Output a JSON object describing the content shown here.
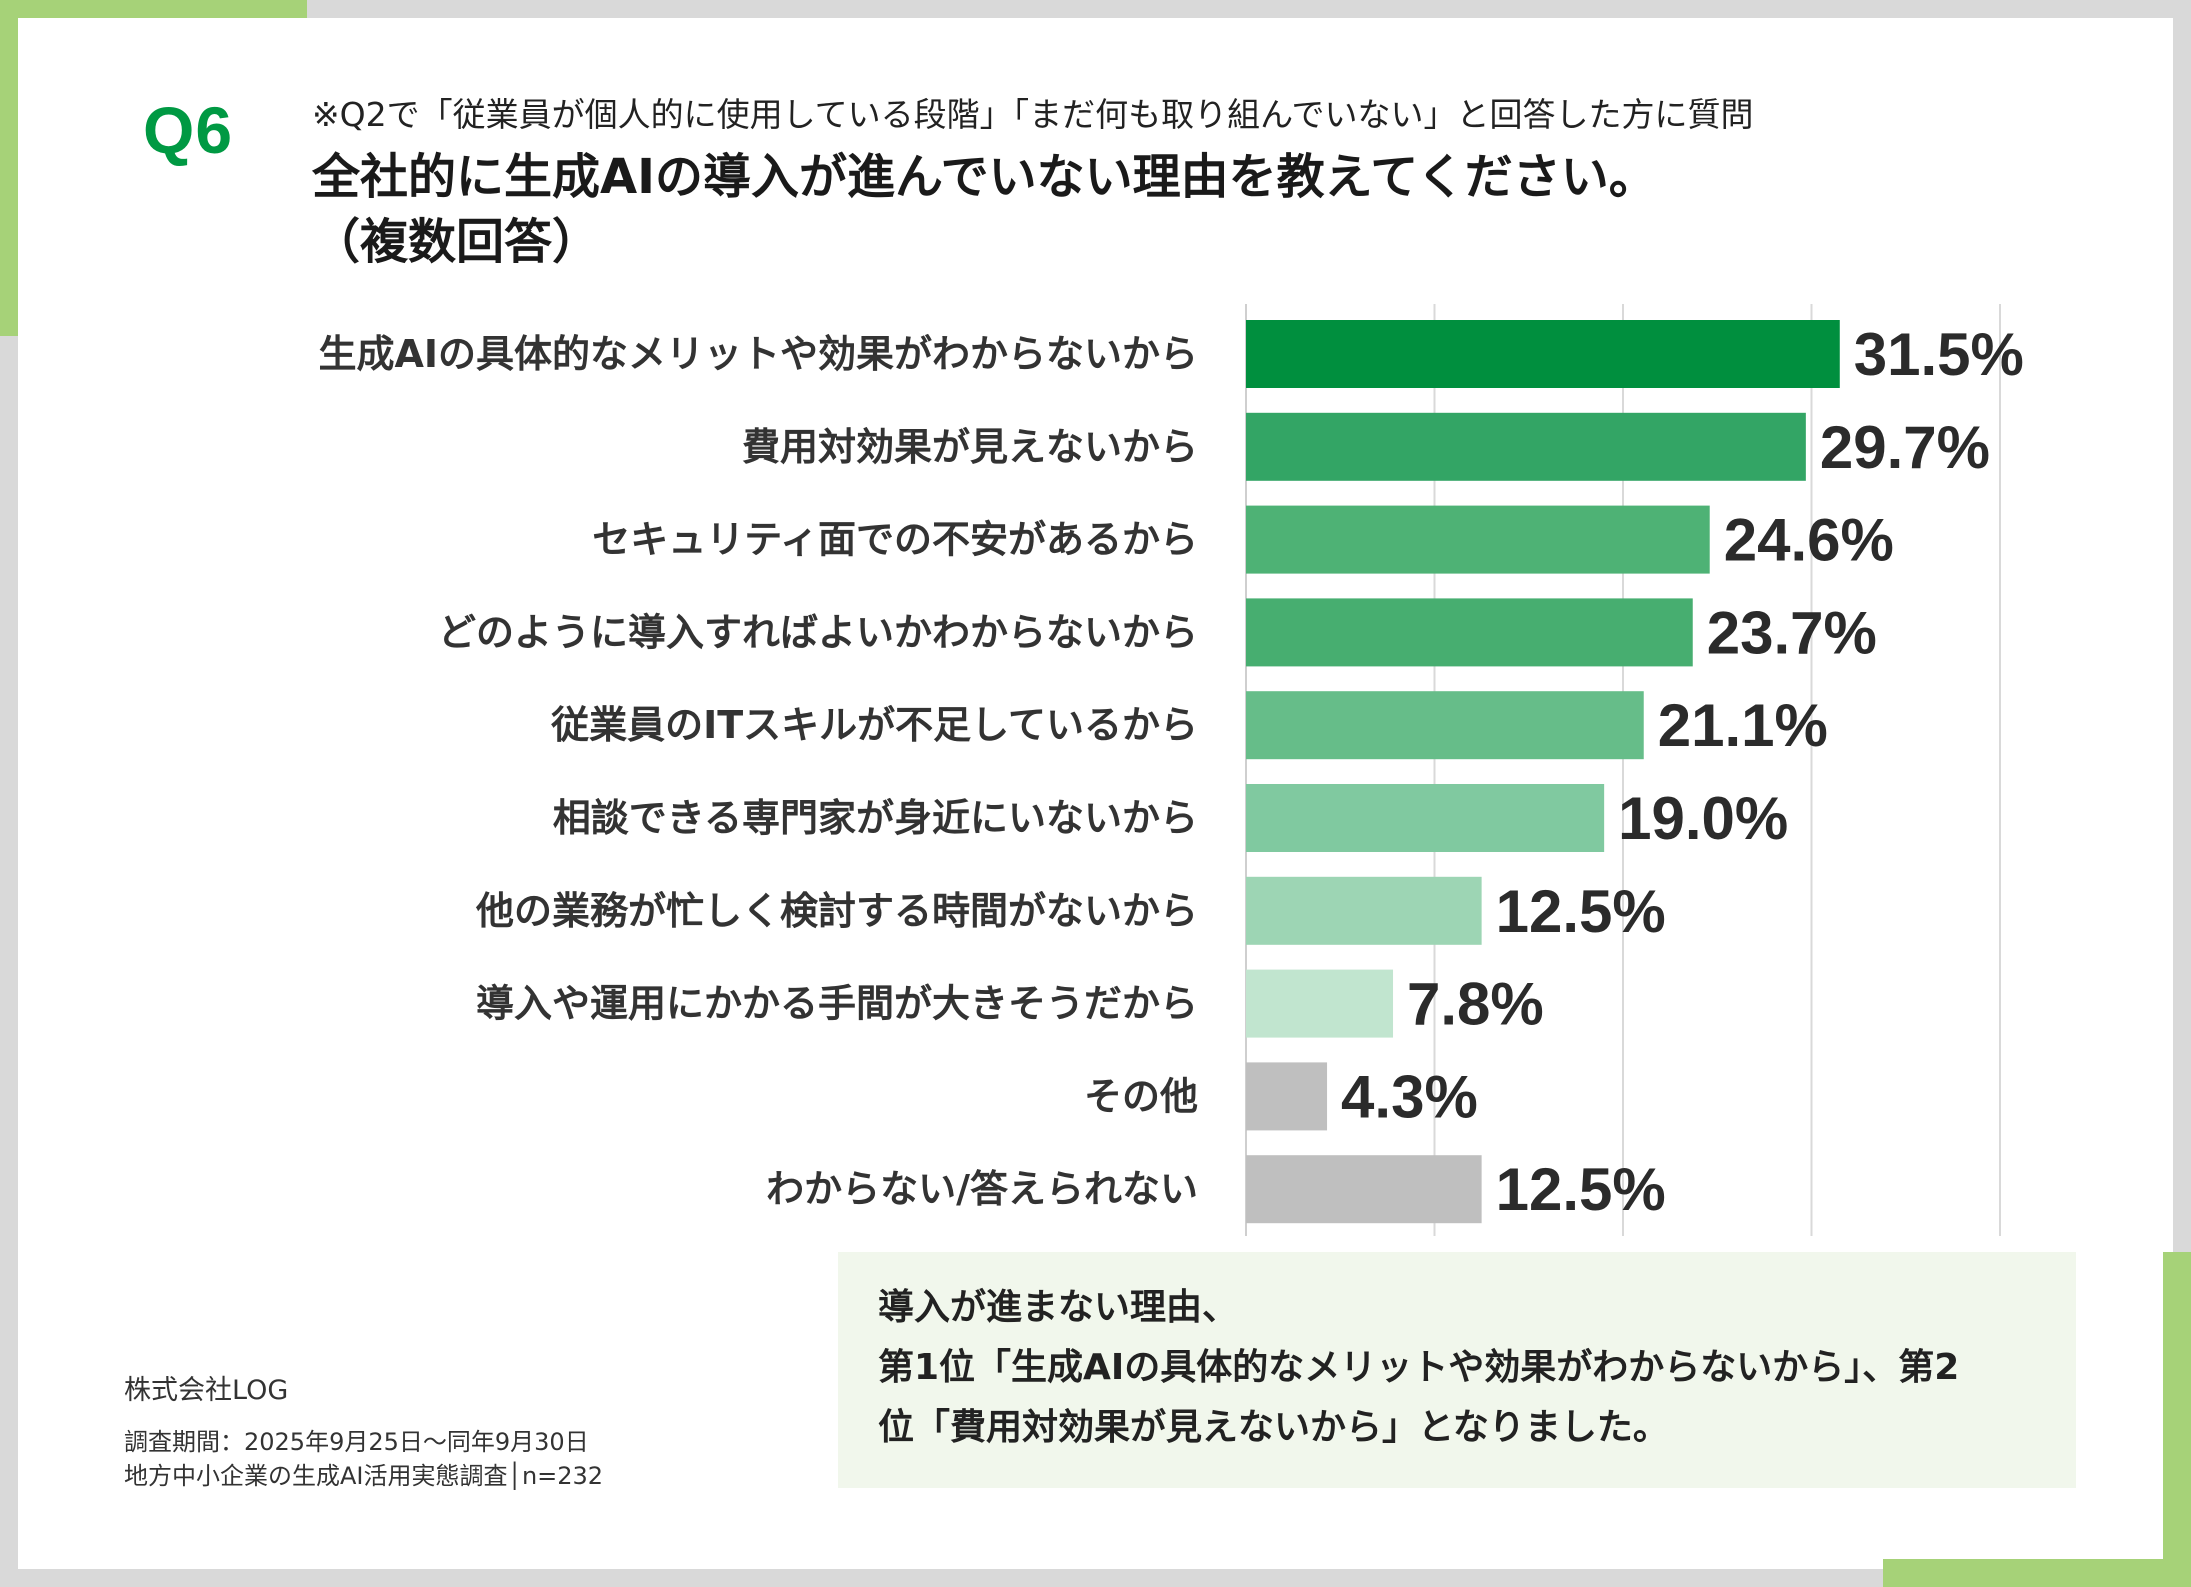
{
  "question": {
    "number": "Q6",
    "note": "※Q2で「従業員が個人的に使用している段階」「まだ何も取り組んでいない」と回答した方に質問",
    "title_line1": "全社的に生成AIの導入が進んでいない理由を教えてください。",
    "title_line2": "（複数回答）"
  },
  "chart_data": {
    "type": "bar",
    "orientation": "horizontal",
    "title": "全社的に生成AIの導入が進んでいない理由を教えてください。（複数回答）",
    "unit": "%",
    "xlim": [
      0,
      40
    ],
    "grid": true,
    "categories": [
      "生成AIの具体的なメリットや効果がわからないから",
      "費用対効果が見えないから",
      "セキュリティ面での不安があるから",
      "どのように導入すればよいかわからないから",
      "従業員のITスキルが不足しているから",
      "相談できる専門家が身近にいないから",
      "他の業務が忙しく検討する時間がないから",
      "導入や運用にかかる手間が大きそうだから",
      "その他",
      "わからない/答えられない"
    ],
    "values": [
      31.5,
      29.7,
      24.6,
      23.7,
      21.1,
      19.0,
      12.5,
      7.8,
      4.3,
      12.5
    ],
    "value_labels": [
      "31.5%",
      "29.7%",
      "24.6%",
      "23.7%",
      "21.1%",
      "19.0%",
      "12.5%",
      "7.8%",
      "4.3%",
      "12.5%"
    ],
    "colors": [
      "#008f3e",
      "#33a565",
      "#4eb275",
      "#47ae70",
      "#66bd89",
      "#80c9a0",
      "#9dd5b4",
      "#c1e5cf",
      "#bfbfbf",
      "#bfbfbf"
    ]
  },
  "summary": {
    "line1": "導入が進まない理由、",
    "line2": "第1位「生成AIの具体的なメリットや効果がわからないから」、第2",
    "line3": "位「費用対効果が見えないから」となりました。"
  },
  "footer": {
    "company": "株式会社LOG",
    "period": "調査期間：2025年9月25日～同年9月30日",
    "survey": "地方中小企業の生成AI活用実態調査│n=232"
  }
}
